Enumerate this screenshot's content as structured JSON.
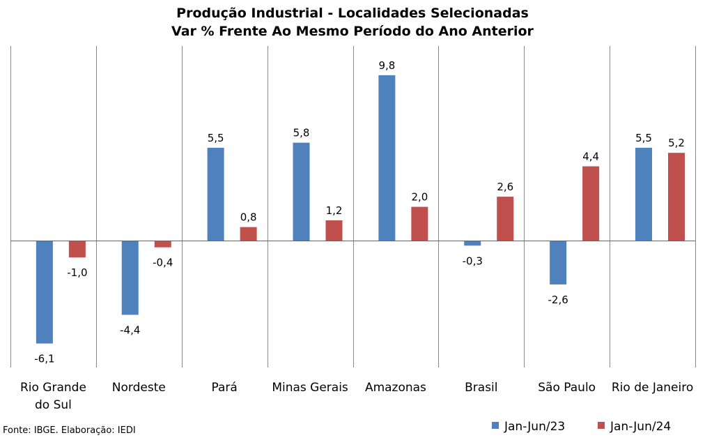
{
  "chart_data": {
    "type": "bar",
    "title": "Produção Industrial - Localidades Selecionadas",
    "subtitle": "Var % Frente Ao Mesmo Período do Ano Anterior",
    "categories": [
      "Rio Grande do Sul",
      "Nordeste",
      "Pará",
      "Minas Gerais",
      "Amazonas",
      "Brasil",
      "São Paulo",
      "Rio de Janeiro"
    ],
    "category_lines": [
      [
        "Rio Grande",
        "do Sul"
      ],
      [
        "Nordeste"
      ],
      [
        "Pará"
      ],
      [
        "Minas Gerais"
      ],
      [
        "Amazonas"
      ],
      [
        "Brasil"
      ],
      [
        "São Paulo"
      ],
      [
        "Rio de Janeiro"
      ]
    ],
    "series": [
      {
        "name": "Jan-Jun/23",
        "color": "#4f81bd",
        "values": [
          -6.1,
          -4.4,
          5.5,
          5.8,
          9.8,
          -0.3,
          -2.6,
          5.5
        ],
        "labels": [
          "-6,1",
          "-4,4",
          "5,5",
          "5,8",
          "9,8",
          "-0,3",
          "-2,6",
          "5,5"
        ]
      },
      {
        "name": "Jan-Jun/24",
        "color": "#c0504d",
        "values": [
          -1.0,
          -0.4,
          0.8,
          1.2,
          2.0,
          2.6,
          4.4,
          5.2
        ],
        "labels": [
          "-1,0",
          "-0,4",
          "0,8",
          "1,2",
          "2,0",
          "2,6",
          "4,4",
          "5,2"
        ]
      }
    ],
    "ylim": [
      -7.4,
      11.4
    ],
    "legend_position": "bottom-right",
    "grid": "vertical separators between categories"
  },
  "source_note": "Fonte: IBGE. Elaboração: IEDI"
}
